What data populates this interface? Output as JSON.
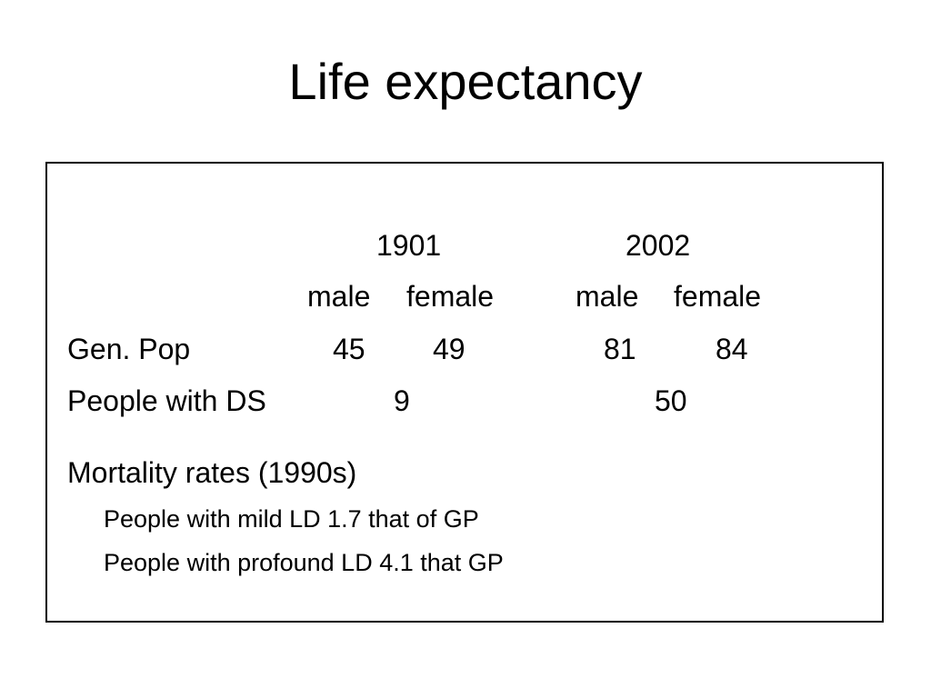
{
  "slide": {
    "title": "Life expectancy"
  },
  "table": {
    "years": [
      "1901",
      "2002"
    ],
    "sex_headers": [
      "male",
      "female",
      "male",
      "female"
    ],
    "rows": [
      {
        "label": "Gen. Pop",
        "values": [
          "45",
          "49",
          "81",
          "84"
        ]
      },
      {
        "label": "People with DS",
        "values": [
          "9",
          "50"
        ]
      }
    ]
  },
  "mortality": {
    "heading": "Mortality rates (1990s)",
    "items": [
      "People with mild LD 1.7 that of GP",
      "People with profound LD 4.1 that GP"
    ]
  }
}
